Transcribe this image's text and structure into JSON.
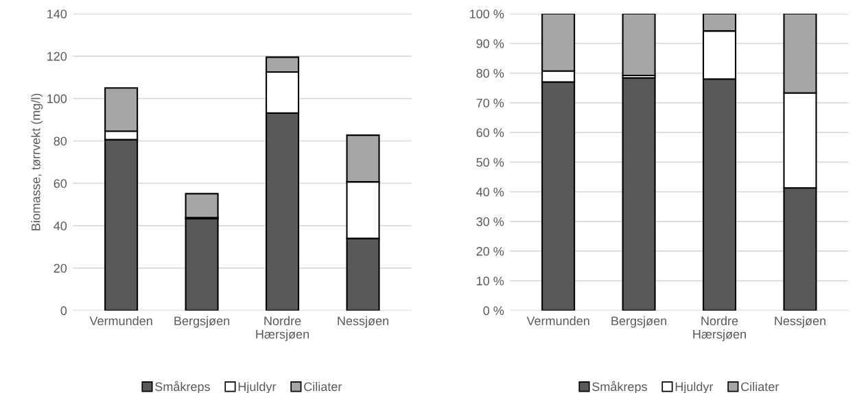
{
  "chart_data": [
    {
      "type": "bar",
      "stacked": true,
      "ylabel": "Biomasse, tørrvekt (mg/l)",
      "categories": [
        "Vermunden",
        "Bergsjøen",
        "Nordre\nHærsjøen",
        "Nessjøen"
      ],
      "series": [
        {
          "name": "Småkreps",
          "color": "#595959",
          "values": [
            80.6,
            43.3,
            93.2,
            34.0
          ]
        },
        {
          "name": "Hjuldyr",
          "color": "#ffffff",
          "values": [
            4.0,
            0.5,
            19.3,
            26.7
          ]
        },
        {
          "name": "Ciliater",
          "color": "#a6a6a6",
          "values": [
            20.4,
            11.3,
            7.0,
            22.0
          ]
        }
      ],
      "ylim": [
        0,
        140
      ],
      "yticks": [
        0,
        20,
        40,
        60,
        80,
        100,
        120,
        140
      ],
      "grid": "y",
      "legend": "bottom"
    },
    {
      "type": "bar",
      "stacked": true,
      "categories": [
        "Vermunden",
        "Bergsjøen",
        "Nordre\nHærsjøen",
        "Nessjøen"
      ],
      "series": [
        {
          "name": "Småkreps",
          "color": "#595959",
          "values": [
            77.0,
            78.4,
            78.0,
            41.3
          ]
        },
        {
          "name": "Hjuldyr",
          "color": "#ffffff",
          "values": [
            3.7,
            0.8,
            16.2,
            32.0
          ]
        },
        {
          "name": "Ciliater",
          "color": "#a6a6a6",
          "values": [
            19.3,
            20.8,
            5.8,
            26.7
          ]
        }
      ],
      "ylim": [
        0,
        100
      ],
      "yticks": [
        {
          "value": 0,
          "label": "0 %"
        },
        {
          "value": 10,
          "label": "10 %"
        },
        {
          "value": 20,
          "label": "20 %"
        },
        {
          "value": 30,
          "label": "30 %"
        },
        {
          "value": 40,
          "label": "40 %"
        },
        {
          "value": 50,
          "label": "50 %"
        },
        {
          "value": 60,
          "label": "60 %"
        },
        {
          "value": 70,
          "label": "70 %"
        },
        {
          "value": 80,
          "label": "80 %"
        },
        {
          "value": 90,
          "label": "90 %"
        },
        {
          "value": 100,
          "label": "100 %"
        }
      ],
      "grid": "y",
      "legend": "bottom"
    }
  ]
}
